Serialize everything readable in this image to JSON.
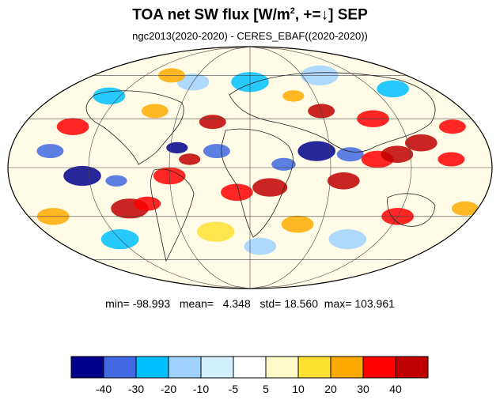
{
  "figure": {
    "title_main": "TOA net SW flux [W/m",
    "title_sup": "2",
    "title_rest": ", +=↓]  SEP",
    "subtitle": "ngc2013(2020-2020) - CERES_EBAF((2020-2020))",
    "projection": "Mollweide",
    "grid": true
  },
  "stats": {
    "min_label": "min=",
    "min": "-98.993",
    "mean_label": "mean=",
    "mean": "4.348",
    "std_label": "std=",
    "std": "18.560",
    "max_label": "max=",
    "max": "103.961"
  },
  "colorbar": {
    "colors": [
      "#00008b",
      "#4169e1",
      "#00bfff",
      "#a0d2ff",
      "#d2f0ff",
      "#ffffff",
      "#fffac8",
      "#ffe132",
      "#ffaa00",
      "#ff0000",
      "#c00000"
    ],
    "tick_labels": [
      "-40",
      "-30",
      "-20",
      "-10",
      "-5",
      "5",
      "10",
      "20",
      "30",
      "40"
    ]
  },
  "blobs": [
    {
      "lon": -125,
      "lat": -5,
      "r": 14,
      "c": 0
    },
    {
      "lon": -100,
      "lat": -8,
      "r": 8,
      "c": 1
    },
    {
      "lon": -95,
      "lat": -25,
      "r": 14,
      "c": 10
    },
    {
      "lon": -80,
      "lat": -22,
      "r": 10,
      "c": 9
    },
    {
      "lon": -60,
      "lat": -5,
      "r": 12,
      "c": 9
    },
    {
      "lon": -45,
      "lat": 5,
      "r": 8,
      "c": 10
    },
    {
      "lon": -55,
      "lat": 12,
      "r": 8,
      "c": 0
    },
    {
      "lon": -25,
      "lat": 10,
      "r": 10,
      "c": 1
    },
    {
      "lon": -10,
      "lat": -15,
      "r": 12,
      "c": 9
    },
    {
      "lon": 15,
      "lat": -12,
      "r": 13,
      "c": 10
    },
    {
      "lon": 25,
      "lat": 2,
      "r": 9,
      "c": 1
    },
    {
      "lon": 50,
      "lat": 10,
      "r": 14,
      "c": 0
    },
    {
      "lon": 75,
      "lat": 8,
      "r": 10,
      "c": 1
    },
    {
      "lon": 70,
      "lat": -8,
      "r": 12,
      "c": 10
    },
    {
      "lon": 95,
      "lat": 5,
      "r": 12,
      "c": 9
    },
    {
      "lon": 110,
      "lat": 8,
      "r": 12,
      "c": 10
    },
    {
      "lon": 130,
      "lat": 15,
      "r": 12,
      "c": 10
    },
    {
      "lon": 150,
      "lat": 5,
      "r": 10,
      "c": 9
    },
    {
      "lon": 160,
      "lat": 25,
      "r": 10,
      "c": 9
    },
    {
      "lon": 100,
      "lat": 30,
      "r": 12,
      "c": 9
    },
    {
      "lon": 60,
      "lat": 35,
      "r": 10,
      "c": 10
    },
    {
      "lon": 40,
      "lat": 45,
      "r": 8,
      "c": 8
    },
    {
      "lon": -30,
      "lat": 28,
      "r": 10,
      "c": 10
    },
    {
      "lon": -80,
      "lat": 35,
      "r": 10,
      "c": 8
    },
    {
      "lon": -140,
      "lat": 25,
      "r": 12,
      "c": 9
    },
    {
      "lon": -150,
      "lat": 10,
      "r": 10,
      "c": 1
    },
    {
      "lon": -130,
      "lat": 45,
      "r": 12,
      "c": 2
    },
    {
      "lon": -60,
      "lat": 55,
      "r": 12,
      "c": 3
    },
    {
      "lon": 0,
      "lat": 55,
      "r": 14,
      "c": 2
    },
    {
      "lon": 80,
      "lat": 60,
      "r": 14,
      "c": 3
    },
    {
      "lon": 140,
      "lat": 50,
      "r": 12,
      "c": 2
    },
    {
      "lon": -160,
      "lat": -30,
      "r": 12,
      "c": 8
    },
    {
      "lon": -30,
      "lat": -40,
      "r": 14,
      "c": 7
    },
    {
      "lon": 40,
      "lat": -35,
      "r": 12,
      "c": 8
    },
    {
      "lon": 120,
      "lat": -30,
      "r": 12,
      "c": 9
    },
    {
      "lon": 170,
      "lat": -25,
      "r": 10,
      "c": 8
    },
    {
      "lon": -120,
      "lat": -45,
      "r": 14,
      "c": 2
    },
    {
      "lon": 90,
      "lat": -45,
      "r": 14,
      "c": 3
    },
    {
      "lon": 10,
      "lat": -50,
      "r": 12,
      "c": 3
    },
    {
      "lon": -90,
      "lat": 60,
      "r": 10,
      "c": 8
    }
  ]
}
